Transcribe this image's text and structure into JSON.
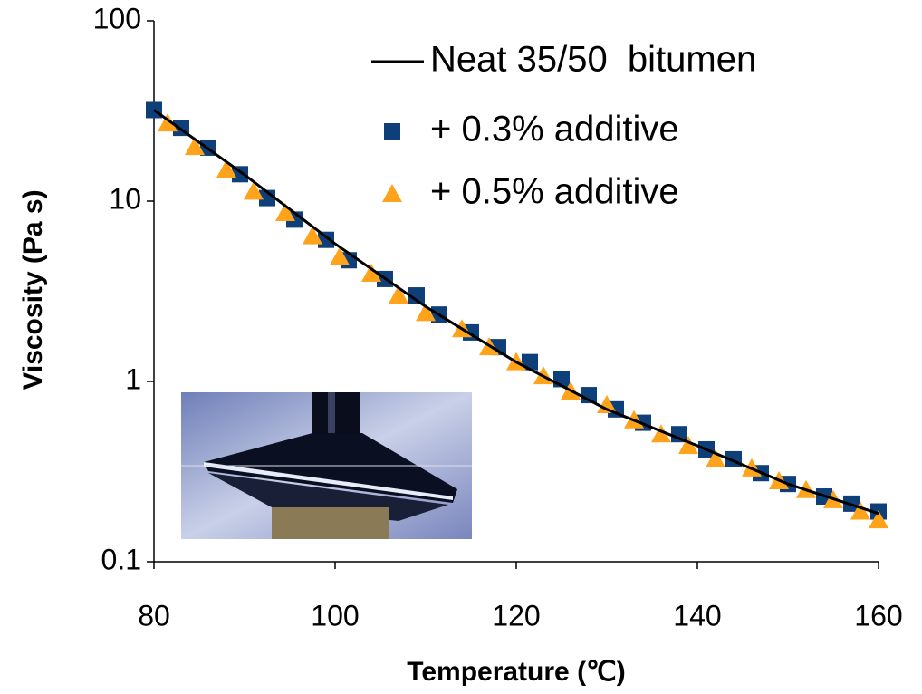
{
  "chart_data": {
    "type": "line",
    "xlabel": "Temperature (℃)",
    "ylabel": "Viscosity (Pa s)",
    "xlim": [
      80,
      160
    ],
    "xticks": [
      80,
      100,
      120,
      140,
      160
    ],
    "ylim": [
      0.1,
      100
    ],
    "yticks": [
      0.1,
      1,
      10,
      100
    ],
    "yscale": "log",
    "series": [
      {
        "name": "Neat 35/50  bitumen",
        "type": "line",
        "color": "#000000",
        "x": [
          80,
          90,
          100,
          110,
          120,
          130,
          140,
          150,
          160
        ],
        "values": [
          32,
          14,
          5.8,
          2.6,
          1.28,
          0.7,
          0.44,
          0.27,
          0.185
        ]
      },
      {
        "name": "+ 0.3% additive",
        "type": "square",
        "color": "#0f3f78",
        "x": [
          80,
          83,
          86,
          89.5,
          92.5,
          95.5,
          99,
          101.5,
          105.5,
          109,
          111.5,
          115,
          118,
          121.5,
          125,
          128,
          131,
          134,
          138,
          141,
          144,
          147,
          150,
          154,
          157,
          160
        ],
        "values": [
          32,
          25.5,
          19.8,
          14.1,
          10.4,
          7.9,
          6.1,
          4.7,
          3.7,
          3.0,
          2.35,
          1.87,
          1.55,
          1.28,
          1.03,
          0.84,
          0.7,
          0.59,
          0.51,
          0.42,
          0.37,
          0.31,
          0.27,
          0.23,
          0.21,
          0.19
        ]
      },
      {
        "name": "+ 0.5% additive",
        "type": "triangle",
        "color": "#ffa31a",
        "x": [
          81.5,
          84.5,
          88,
          91,
          94.5,
          97.5,
          100.5,
          104,
          107,
          110,
          114,
          117,
          120,
          123,
          126,
          130,
          133,
          136,
          139,
          142,
          146,
          149,
          152,
          155,
          158,
          160
        ],
        "values": [
          27,
          20,
          15,
          11.3,
          8.6,
          6.4,
          4.9,
          3.96,
          3.0,
          2.4,
          1.95,
          1.55,
          1.28,
          1.07,
          0.88,
          0.74,
          0.61,
          0.51,
          0.44,
          0.37,
          0.33,
          0.28,
          0.25,
          0.22,
          0.19,
          0.17
        ]
      }
    ]
  }
}
